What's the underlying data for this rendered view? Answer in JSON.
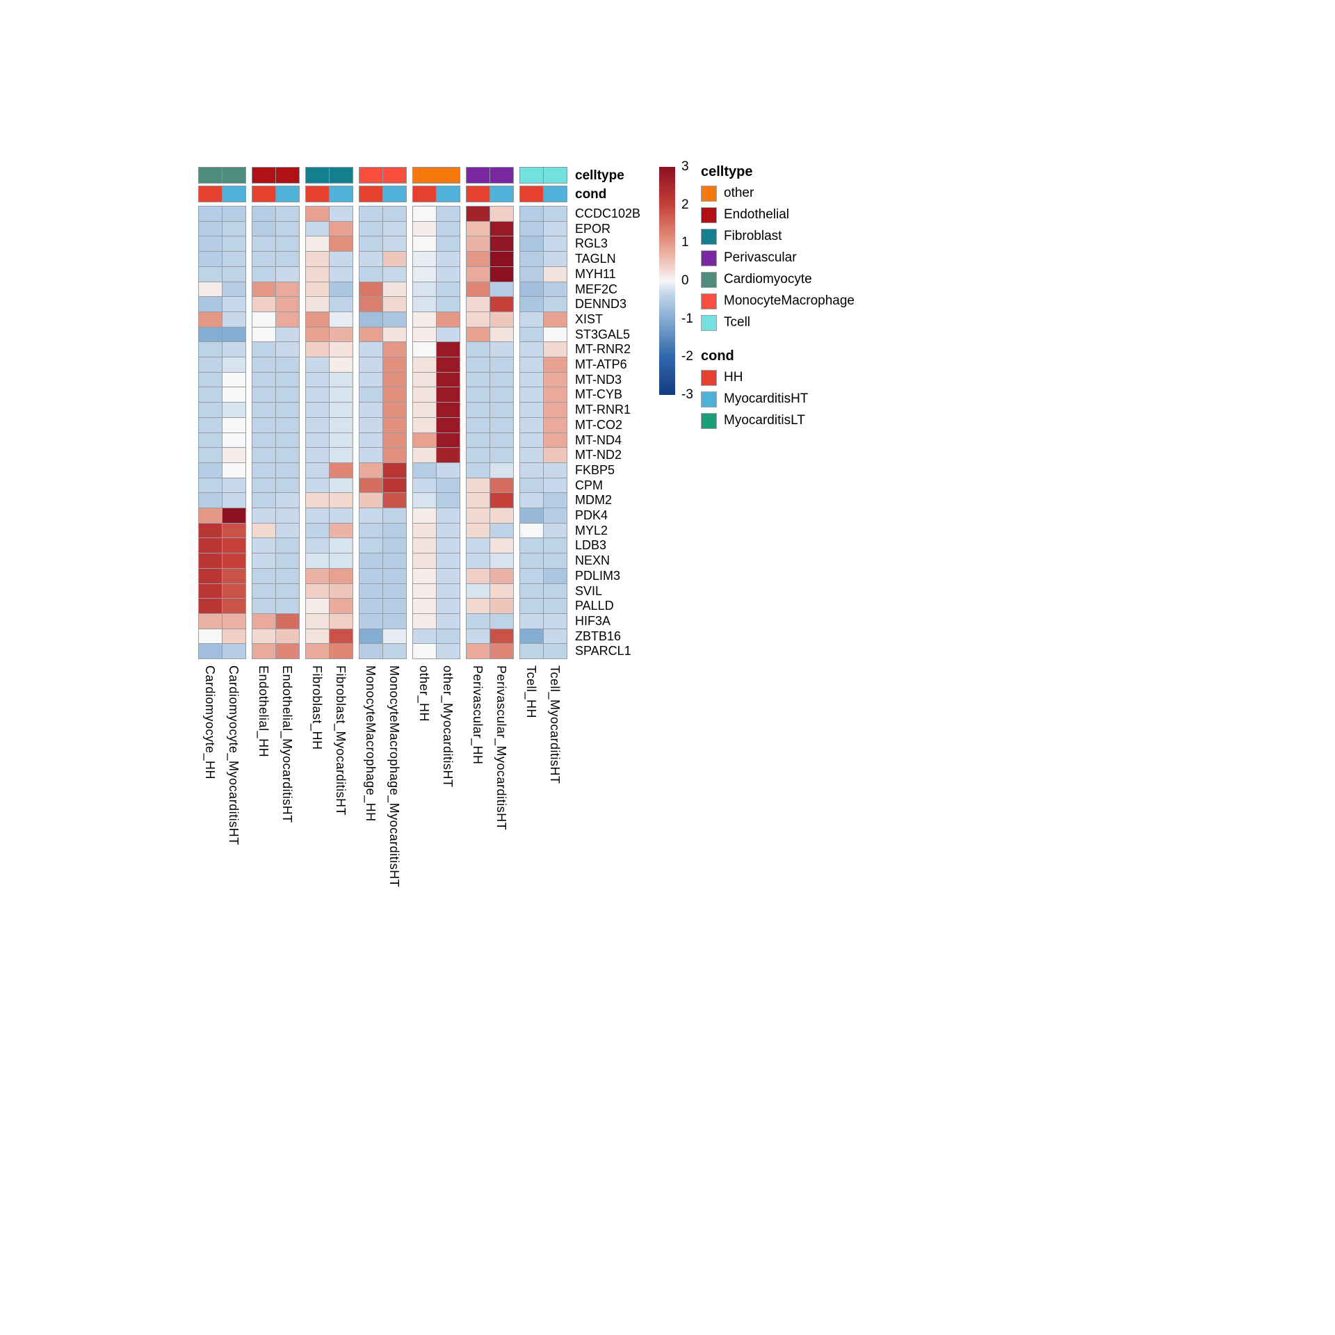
{
  "annotations": {
    "celltype_label": "celltype",
    "cond_label": "cond"
  },
  "legends": {
    "celltype": {
      "title": "celltype",
      "items": [
        {
          "label": "other",
          "color": "#f8790b"
        },
        {
          "label": "Endothelial",
          "color": "#b11016"
        },
        {
          "label": "Fibroblast",
          "color": "#15808d"
        },
        {
          "label": "Perivascular",
          "color": "#7a28a0"
        },
        {
          "label": "Cardiomyocyte",
          "color": "#4e8d7c"
        },
        {
          "label": "MonocyteMacrophage",
          "color": "#fa4f3e"
        },
        {
          "label": "Tcell",
          "color": "#73e2df"
        }
      ]
    },
    "cond": {
      "title": "cond",
      "items": [
        {
          "label": "HH",
          "color": "#e8402e"
        },
        {
          "label": "MyocarditisHT",
          "color": "#4fb3d9"
        },
        {
          "label": "MyocarditisLT",
          "color": "#1b9e77"
        }
      ]
    }
  },
  "chart_data": {
    "type": "heatmap",
    "title": "",
    "legend_position": "right",
    "colorscale": {
      "min": -3,
      "max": 3,
      "ticks": [
        3,
        2,
        1,
        0,
        -1,
        -2,
        -3
      ],
      "gradient_stops": [
        {
          "v": -3,
          "c": "#143c82"
        },
        {
          "v": -2,
          "c": "#3167ad"
        },
        {
          "v": -1,
          "c": "#85acd1"
        },
        {
          "v": -0.3,
          "c": "#c7d9eb"
        },
        {
          "v": 0,
          "c": "#f7f7f7"
        },
        {
          "v": 0.3,
          "c": "#f3d8d0"
        },
        {
          "v": 1,
          "c": "#e59886"
        },
        {
          "v": 2,
          "c": "#c54039"
        },
        {
          "v": 3,
          "c": "#8c1021"
        }
      ]
    },
    "columns": [
      {
        "id": "Cardiomyocyte_HH",
        "celltype": "Cardiomyocyte",
        "cond": "HH"
      },
      {
        "id": "Cardiomyocyte_MyocarditisHT",
        "celltype": "Cardiomyocyte",
        "cond": "MyocarditisHT"
      },
      {
        "id": "Endothelial_HH",
        "celltype": "Endothelial",
        "cond": "HH"
      },
      {
        "id": "Endothelial_MyocarditisHT",
        "celltype": "Endothelial",
        "cond": "MyocarditisHT"
      },
      {
        "id": "Fibroblast_HH",
        "celltype": "Fibroblast",
        "cond": "HH"
      },
      {
        "id": "Fibroblast_MyocarditisHT",
        "celltype": "Fibroblast",
        "cond": "MyocarditisHT"
      },
      {
        "id": "MonocyteMacrophage_HH",
        "celltype": "MonocyteMacrophage",
        "cond": "HH"
      },
      {
        "id": "MonocyteMacrophage_MyocarditisHT",
        "celltype": "MonocyteMacrophage",
        "cond": "MyocarditisHT"
      },
      {
        "id": "other_HH",
        "celltype": "other",
        "cond": "HH"
      },
      {
        "id": "other_MyocarditisHT",
        "celltype": "other",
        "cond": "MyocarditisHT"
      },
      {
        "id": "Perivascular_HH",
        "celltype": "Perivascular",
        "cond": "HH"
      },
      {
        "id": "Perivascular_MyocarditisHT",
        "celltype": "Perivascular",
        "cond": "MyocarditisHT"
      },
      {
        "id": "Tcell_HH",
        "celltype": "Tcell",
        "cond": "HH"
      },
      {
        "id": "Tcell_MyocarditisHT",
        "celltype": "Tcell",
        "cond": "MyocarditisHT"
      }
    ],
    "genes": [
      "CCDC102B",
      "EPOR",
      "RGL3",
      "TAGLN",
      "MYH11",
      "MEF2C",
      "DENND3",
      "XIST",
      "ST3GAL5",
      "MT-RNR2",
      "MT-ATP6",
      "MT-ND3",
      "MT-CYB",
      "MT-RNR1",
      "MT-CO2",
      "MT-ND4",
      "MT-ND2",
      "FKBP5",
      "CPM",
      "MDM2",
      "PDK4",
      "MYL2",
      "LDB3",
      "NEXN",
      "PDLIM3",
      "SVIL",
      "PALLD",
      "HIF3A",
      "ZBTB16",
      "SPARCL1"
    ],
    "values": [
      [
        -0.5,
        -0.5,
        -0.5,
        -0.4,
        0.9,
        -0.3,
        -0.4,
        -0.4,
        0.0,
        -0.4,
        2.6,
        0.4,
        -0.5,
        -0.4
      ],
      [
        -0.5,
        -0.4,
        -0.5,
        -0.4,
        -0.3,
        0.9,
        -0.4,
        -0.3,
        0.1,
        -0.4,
        0.6,
        2.8,
        -0.5,
        -0.3
      ],
      [
        -0.5,
        -0.4,
        -0.4,
        -0.4,
        0.1,
        1.1,
        -0.4,
        -0.3,
        0.0,
        -0.4,
        0.7,
        2.9,
        -0.6,
        -0.3
      ],
      [
        -0.5,
        -0.4,
        -0.4,
        -0.4,
        0.3,
        -0.3,
        -0.3,
        0.5,
        -0.1,
        -0.3,
        1.0,
        3.0,
        -0.5,
        -0.3
      ],
      [
        -0.4,
        -0.4,
        -0.4,
        -0.3,
        0.3,
        -0.3,
        -0.4,
        -0.3,
        -0.1,
        -0.3,
        0.8,
        3.0,
        -0.5,
        0.2
      ],
      [
        0.1,
        -0.5,
        1.0,
        0.8,
        0.3,
        -0.6,
        1.4,
        0.2,
        -0.2,
        -0.4,
        1.2,
        -0.5,
        -0.7,
        -0.5
      ],
      [
        -0.6,
        -0.3,
        0.4,
        0.8,
        0.2,
        -0.4,
        1.3,
        0.3,
        -0.2,
        -0.4,
        0.3,
        2.0,
        -0.6,
        -0.4
      ],
      [
        1.0,
        -0.3,
        0.0,
        0.8,
        1.0,
        -0.1,
        -0.7,
        -0.6,
        0.1,
        1.0,
        0.3,
        0.5,
        -0.3,
        0.9
      ],
      [
        -1.0,
        -1.0,
        0.0,
        -0.3,
        0.9,
        0.7,
        0.9,
        0.2,
        0.1,
        -0.3,
        0.9,
        0.2,
        -0.4,
        0.0
      ],
      [
        -0.4,
        -0.3,
        -0.4,
        -0.3,
        0.4,
        0.2,
        -0.3,
        1.0,
        0.0,
        2.8,
        -0.4,
        -0.3,
        -0.3,
        0.3
      ],
      [
        -0.4,
        -0.2,
        -0.4,
        -0.4,
        -0.3,
        0.1,
        -0.3,
        1.1,
        0.2,
        2.8,
        -0.4,
        -0.4,
        -0.3,
        0.9
      ],
      [
        -0.4,
        0.0,
        -0.4,
        -0.4,
        -0.3,
        -0.2,
        -0.3,
        1.1,
        0.2,
        2.8,
        -0.4,
        -0.4,
        -0.3,
        0.8
      ],
      [
        -0.4,
        0.0,
        -0.4,
        -0.4,
        -0.3,
        -0.2,
        -0.4,
        1.1,
        0.2,
        2.8,
        -0.4,
        -0.4,
        -0.3,
        0.8
      ],
      [
        -0.4,
        -0.2,
        -0.4,
        -0.4,
        -0.3,
        -0.2,
        -0.3,
        1.1,
        0.2,
        2.8,
        -0.4,
        -0.4,
        -0.3,
        0.8
      ],
      [
        -0.4,
        0.0,
        -0.4,
        -0.4,
        -0.3,
        -0.2,
        -0.3,
        1.1,
        0.2,
        2.8,
        -0.4,
        -0.4,
        -0.3,
        0.8
      ],
      [
        -0.4,
        0.0,
        -0.4,
        -0.4,
        -0.3,
        -0.2,
        -0.3,
        1.1,
        0.9,
        2.8,
        -0.4,
        -0.4,
        -0.3,
        0.8
      ],
      [
        -0.4,
        0.1,
        -0.4,
        -0.4,
        -0.3,
        -0.2,
        -0.3,
        1.1,
        0.2,
        2.6,
        -0.4,
        -0.4,
        -0.3,
        0.5
      ],
      [
        -0.5,
        0.0,
        -0.4,
        -0.4,
        -0.3,
        1.2,
        0.8,
        2.2,
        -0.5,
        -0.3,
        -0.4,
        -0.2,
        -0.3,
        -0.3
      ],
      [
        -0.4,
        -0.3,
        -0.4,
        -0.4,
        -0.3,
        -0.2,
        1.5,
        2.2,
        -0.3,
        -0.5,
        0.3,
        1.5,
        -0.4,
        -0.3
      ],
      [
        -0.5,
        -0.3,
        -0.4,
        -0.3,
        0.3,
        0.3,
        0.5,
        1.8,
        -0.2,
        -0.5,
        0.3,
        2.0,
        -0.3,
        -0.5
      ],
      [
        1.0,
        3.0,
        -0.3,
        -0.3,
        -0.3,
        -0.3,
        -0.3,
        -0.4,
        0.1,
        -0.3,
        0.3,
        0.3,
        -0.8,
        -0.5
      ],
      [
        2.2,
        1.8,
        0.3,
        -0.3,
        -0.4,
        0.7,
        -0.4,
        -0.5,
        0.2,
        -0.3,
        0.3,
        -0.4,
        0.0,
        -0.3
      ],
      [
        2.2,
        2.0,
        -0.3,
        -0.4,
        -0.3,
        -0.2,
        -0.4,
        -0.5,
        0.2,
        -0.3,
        -0.3,
        0.2,
        -0.4,
        -0.4
      ],
      [
        2.2,
        2.0,
        -0.3,
        -0.4,
        -0.2,
        -0.2,
        -0.5,
        -0.5,
        0.2,
        -0.3,
        -0.3,
        -0.2,
        -0.4,
        -0.4
      ],
      [
        2.2,
        1.8,
        -0.4,
        -0.4,
        0.7,
        0.9,
        -0.5,
        -0.5,
        0.1,
        -0.3,
        0.4,
        0.7,
        -0.4,
        -0.6
      ],
      [
        2.2,
        1.8,
        -0.4,
        -0.4,
        0.4,
        0.5,
        -0.5,
        -0.5,
        0.1,
        -0.3,
        -0.2,
        0.3,
        -0.4,
        -0.4
      ],
      [
        2.2,
        1.8,
        -0.4,
        -0.4,
        0.1,
        0.8,
        -0.5,
        -0.5,
        0.1,
        -0.3,
        0.3,
        0.5,
        -0.4,
        -0.4
      ],
      [
        0.7,
        0.7,
        0.8,
        1.5,
        0.2,
        0.4,
        -0.5,
        -0.5,
        0.1,
        -0.3,
        -0.4,
        -0.4,
        -0.3,
        -0.3
      ],
      [
        0.0,
        0.4,
        0.3,
        0.5,
        0.2,
        1.8,
        -1.0,
        -0.1,
        -0.3,
        -0.4,
        -0.3,
        1.8,
        -1.0,
        -0.3
      ],
      [
        -0.7,
        -0.5,
        0.8,
        1.2,
        0.8,
        1.2,
        -0.5,
        -0.4,
        0.0,
        -0.3,
        0.8,
        1.2,
        -0.4,
        -0.4
      ]
    ]
  }
}
